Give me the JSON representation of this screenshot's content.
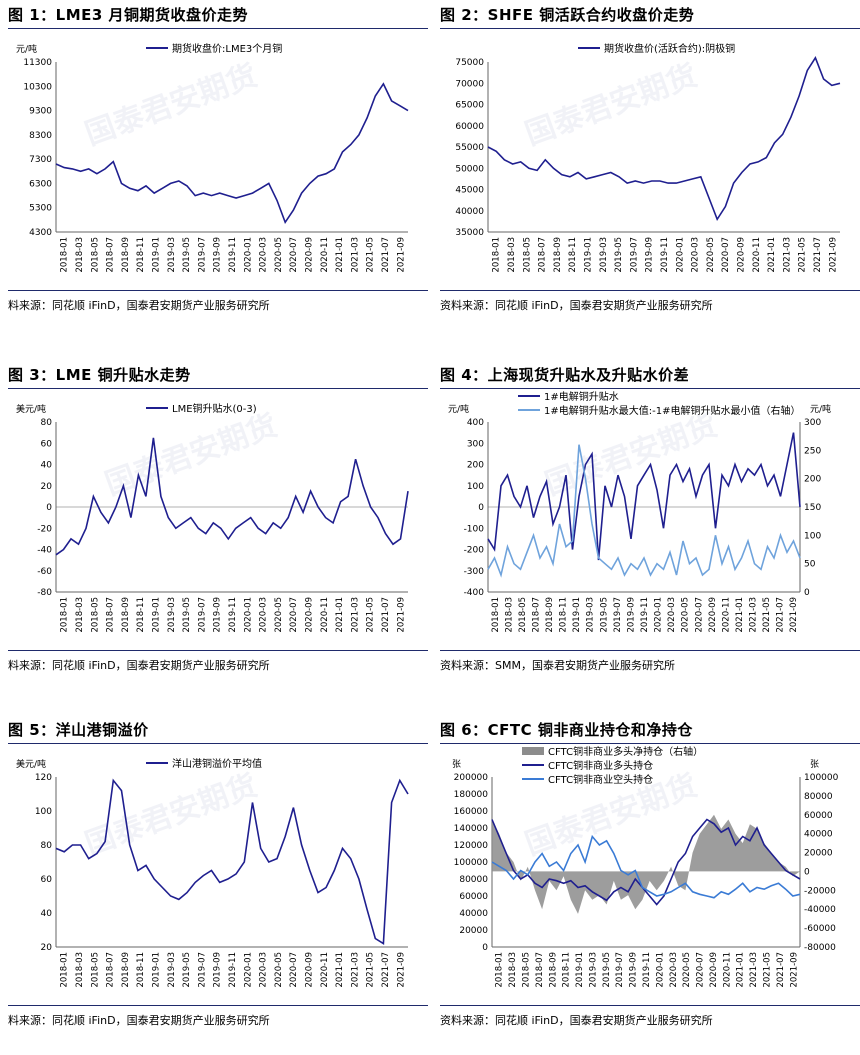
{
  "watermark": "国泰君安期货",
  "charts": [
    {
      "title": "图 1：LME3 月铜期货收盘价走势",
      "source": "料来源：同花顺 iFinD，国泰君安期货产业服务研究所",
      "chart_data": {
        "type": "line",
        "ylabel_left": "元/吨",
        "legend_position": "top",
        "yticks": [
          "11300",
          "10300",
          "9300",
          "8300",
          "7300",
          "6300",
          "5300",
          "4300"
        ],
        "ylim": [
          4300,
          11300
        ],
        "x_ticks": [
          "2018-01",
          "2018-03",
          "2018-05",
          "2018-07",
          "2018-09",
          "2018-11",
          "2019-01",
          "2019-03",
          "2019-05",
          "2019-07",
          "2019-09",
          "2019-11",
          "2020-01",
          "2020-03",
          "2020-05",
          "2020-07",
          "2020-09",
          "2020-11",
          "2021-01",
          "2021-03",
          "2021-05",
          "2021-07",
          "2021-09"
        ],
        "series": [
          {
            "name": "期货收盘价:LME3个月铜",
            "color": "#1f1f8f",
            "axis": "left",
            "values": [
              7100,
              6950,
              6900,
              6800,
              6900,
              6700,
              6900,
              7200,
              6300,
              6100,
              6000,
              6200,
              5900,
              6100,
              6300,
              6400,
              6200,
              5800,
              5900,
              5800,
              5900,
              5800,
              5700,
              5800,
              5900,
              6100,
              6300,
              5600,
              4700,
              5200,
              5900,
              6300,
              6600,
              6700,
              6900,
              7600,
              7900,
              8300,
              9000,
              9900,
              10400,
              9700,
              9500,
              9300
            ]
          }
        ]
      }
    },
    {
      "title": "图 2：SHFE 铜活跃合约收盘价走势",
      "source": "资料来源：同花顺 iFinD，国泰君安期货产业服务研究所",
      "chart_data": {
        "type": "line",
        "legend_position": "top",
        "yticks": [
          "75000",
          "70000",
          "65000",
          "60000",
          "55000",
          "50000",
          "45000",
          "40000",
          "35000"
        ],
        "ylim": [
          35000,
          75000
        ],
        "x_ticks": [
          "2018-01",
          "2018-03",
          "2018-05",
          "2018-07",
          "2018-09",
          "2018-11",
          "2019-01",
          "2019-03",
          "2019-05",
          "2019-07",
          "2019-09",
          "2019-11",
          "2020-01",
          "2020-03",
          "2020-05",
          "2020-07",
          "2020-09",
          "2020-11",
          "2021-01",
          "2021-03",
          "2021-05",
          "2021-07",
          "2021-09"
        ],
        "series": [
          {
            "name": "期货收盘价(活跃合约):阴极铜",
            "color": "#1f1f8f",
            "axis": "left",
            "values": [
              55000,
              54000,
              52000,
              51000,
              51500,
              50000,
              49500,
              52000,
              50000,
              48500,
              48000,
              49000,
              47500,
              48000,
              48500,
              49000,
              48000,
              46500,
              47000,
              46500,
              47000,
              47000,
              46500,
              46500,
              47000,
              47500,
              48000,
              43000,
              38000,
              41000,
              46500,
              49000,
              51000,
              51500,
              52500,
              56000,
              58000,
              62000,
              67000,
              73000,
              76000,
              71000,
              69500,
              70000
            ]
          }
        ]
      }
    },
    {
      "title": "图 3：LME 铜升贴水走势",
      "source": "料来源：同花顺 iFinD，国泰君安期货产业服务研究所",
      "chart_data": {
        "type": "line",
        "ylabel_left": "美元/吨",
        "legend_position": "top",
        "yticks": [
          "80",
          "60",
          "40",
          "20",
          "0",
          "-20",
          "-40",
          "-60",
          "-80"
        ],
        "ylim": [
          -80,
          80
        ],
        "x_ticks": [
          "2018-01",
          "2018-03",
          "2018-05",
          "2018-07",
          "2018-09",
          "2018-11",
          "2019-01",
          "2019-03",
          "2019-05",
          "2019-07",
          "2019-09",
          "2019-11",
          "2020-01",
          "2020-03",
          "2020-05",
          "2020-07",
          "2020-09",
          "2020-11",
          "2021-01",
          "2021-03",
          "2021-05",
          "2021-07",
          "2021-09"
        ],
        "series": [
          {
            "name": "LME铜升贴水(0-3)",
            "color": "#1f1f8f",
            "axis": "left",
            "values": [
              -45,
              -40,
              -30,
              -35,
              -20,
              10,
              -5,
              -15,
              0,
              20,
              -10,
              30,
              10,
              65,
              10,
              -10,
              -20,
              -15,
              -10,
              -20,
              -25,
              -15,
              -20,
              -30,
              -20,
              -15,
              -10,
              -20,
              -25,
              -15,
              -20,
              -10,
              10,
              -5,
              15,
              0,
              -10,
              -15,
              5,
              10,
              45,
              20,
              0,
              -10,
              -25,
              -35,
              -30,
              15
            ]
          }
        ]
      }
    },
    {
      "title": "图 4：上海现货升贴水及升贴水价差",
      "source": "资料来源：SMM，国泰君安期货产业服务研究所",
      "chart_data": {
        "type": "line",
        "ylabel_left": "元/吨",
        "ylabel_right": "元/吨",
        "legend_position": "top-left",
        "yticks": [
          "400",
          "300",
          "200",
          "100",
          "0",
          "-100",
          "-200",
          "-300",
          "-400"
        ],
        "yticks_right": [
          "300",
          "250",
          "200",
          "150",
          "100",
          "50",
          "0"
        ],
        "ylim": [
          -400,
          400
        ],
        "ylim_right": [
          0,
          300
        ],
        "x_ticks": [
          "2018-01",
          "2018-03",
          "2018-05",
          "2018-07",
          "2018-09",
          "2018-11",
          "2019-01",
          "2019-03",
          "2019-05",
          "2019-07",
          "2019-09",
          "2019-11",
          "2020-01",
          "2020-03",
          "2020-05",
          "2020-07",
          "2020-09",
          "2020-11",
          "2021-01",
          "2021-03",
          "2021-05",
          "2021-07",
          "2021-09"
        ],
        "series": [
          {
            "name": "1#电解铜升贴水",
            "color": "#1f1f8f",
            "axis": "left",
            "values": [
              -150,
              -200,
              100,
              150,
              50,
              0,
              100,
              -50,
              50,
              120,
              -80,
              0,
              150,
              -200,
              50,
              200,
              250,
              -250,
              100,
              0,
              150,
              50,
              -150,
              100,
              150,
              200,
              80,
              -100,
              150,
              200,
              120,
              180,
              50,
              150,
              200,
              -100,
              150,
              100,
              200,
              120,
              180,
              150,
              200,
              100,
              150,
              50,
              200,
              350,
              0
            ]
          },
          {
            "name": "1#电解铜升贴水最大值:-1#电解铜升贴水最小值（右轴）",
            "color": "#6fa3dc",
            "axis": "right",
            "values": [
              40,
              60,
              30,
              80,
              50,
              40,
              70,
              100,
              60,
              80,
              50,
              120,
              80,
              90,
              260,
              200,
              120,
              60,
              50,
              40,
              60,
              30,
              50,
              40,
              60,
              30,
              50,
              40,
              70,
              30,
              90,
              50,
              60,
              30,
              40,
              100,
              50,
              80,
              40,
              60,
              90,
              50,
              40,
              80,
              60,
              100,
              70,
              90,
              60
            ]
          }
        ]
      }
    },
    {
      "title": "图 5：洋山港铜溢价",
      "source": "料来源：同花顺 iFinD，国泰君安期货产业服务研究所",
      "chart_data": {
        "type": "line",
        "ylabel_left": "美元/吨",
        "legend_position": "top",
        "yticks": [
          "120",
          "100",
          "80",
          "60",
          "40",
          "20"
        ],
        "ylim": [
          20,
          120
        ],
        "x_ticks": [
          "2018-01",
          "2018-03",
          "2018-05",
          "2018-07",
          "2018-09",
          "2018-11",
          "2019-01",
          "2019-03",
          "2019-05",
          "2019-07",
          "2019-09",
          "2019-11",
          "2020-01",
          "2020-03",
          "2020-05",
          "2020-07",
          "2020-09",
          "2020-11",
          "2021-01",
          "2021-03",
          "2021-05",
          "2021-07",
          "2021-09"
        ],
        "series": [
          {
            "name": "洋山港铜溢价平均值",
            "color": "#1f1f8f",
            "axis": "left",
            "values": [
              78,
              76,
              80,
              80,
              72,
              75,
              82,
              118,
              112,
              80,
              65,
              68,
              60,
              55,
              50,
              48,
              52,
              58,
              62,
              65,
              58,
              60,
              63,
              70,
              105,
              78,
              70,
              72,
              85,
              102,
              80,
              65,
              52,
              55,
              65,
              78,
              72,
              60,
              42,
              25,
              22,
              105,
              118,
              110
            ]
          }
        ]
      }
    },
    {
      "title": "图 6：CFTC 铜非商业持仓和净持仓",
      "source": "资料来源：同花顺 iFinD，国泰君安期货产业服务研究所",
      "chart_data": {
        "type": "line",
        "ylabel_left": "张",
        "ylabel_right": "张",
        "legend_position": "top",
        "yticks": [
          "200000",
          "180000",
          "160000",
          "140000",
          "120000",
          "100000",
          "80000",
          "60000",
          "40000",
          "20000",
          "0"
        ],
        "yticks_right": [
          "100000",
          "80000",
          "60000",
          "40000",
          "20000",
          "0",
          "-20000",
          "-40000",
          "-60000",
          "-80000"
        ],
        "ylim": [
          0,
          200000
        ],
        "ylim_right": [
          -80000,
          100000
        ],
        "x_ticks": [
          "2018-01",
          "2018-03",
          "2018-05",
          "2018-07",
          "2018-09",
          "2018-11",
          "2019-01",
          "2019-03",
          "2019-05",
          "2019-07",
          "2019-09",
          "2019-11",
          "2020-01",
          "2020-03",
          "2020-05",
          "2020-07",
          "2020-09",
          "2020-11",
          "2021-01",
          "2021-03",
          "2021-05",
          "2021-07",
          "2021-09"
        ],
        "series": [
          {
            "name": "CFTC铜非商业多头净持仓（右轴）",
            "color": "#8c8c8c",
            "axis": "right",
            "kind": "area",
            "values": [
              55000,
              40000,
              20000,
              10000,
              -10000,
              5000,
              -20000,
              -40000,
              -10000,
              -20000,
              -5000,
              -30000,
              -45000,
              -20000,
              -30000,
              -25000,
              -35000,
              -10000,
              -30000,
              -25000,
              -40000,
              -30000,
              -10000,
              -20000,
              -10000,
              5000,
              -15000,
              -20000,
              20000,
              40000,
              50000,
              60000,
              45000,
              55000,
              40000,
              30000,
              50000,
              45000,
              30000,
              20000,
              10000,
              5000,
              -5000,
              0
            ]
          },
          {
            "name": "CFTC铜非商业多头持仓",
            "color": "#1f1f8f",
            "axis": "left",
            "values": [
              150000,
              130000,
              110000,
              90000,
              80000,
              85000,
              75000,
              70000,
              80000,
              78000,
              75000,
              78000,
              70000,
              72000,
              65000,
              60000,
              55000,
              65000,
              70000,
              65000,
              80000,
              70000,
              60000,
              50000,
              60000,
              80000,
              100000,
              110000,
              130000,
              140000,
              150000,
              145000,
              135000,
              140000,
              120000,
              130000,
              125000,
              140000,
              120000,
              110000,
              100000,
              90000,
              85000,
              80000
            ]
          },
          {
            "name": "CFTC铜非商业空头持仓",
            "color": "#3a7bd5",
            "axis": "left",
            "values": [
              100000,
              95000,
              90000,
              80000,
              90000,
              85000,
              100000,
              110000,
              95000,
              100000,
              90000,
              110000,
              120000,
              100000,
              130000,
              120000,
              125000,
              110000,
              90000,
              85000,
              90000,
              70000,
              65000,
              60000,
              62000,
              65000,
              70000,
              75000,
              65000,
              62000,
              60000,
              58000,
              65000,
              62000,
              68000,
              75000,
              65000,
              70000,
              68000,
              72000,
              75000,
              68000,
              60000,
              62000
            ]
          }
        ]
      }
    }
  ]
}
